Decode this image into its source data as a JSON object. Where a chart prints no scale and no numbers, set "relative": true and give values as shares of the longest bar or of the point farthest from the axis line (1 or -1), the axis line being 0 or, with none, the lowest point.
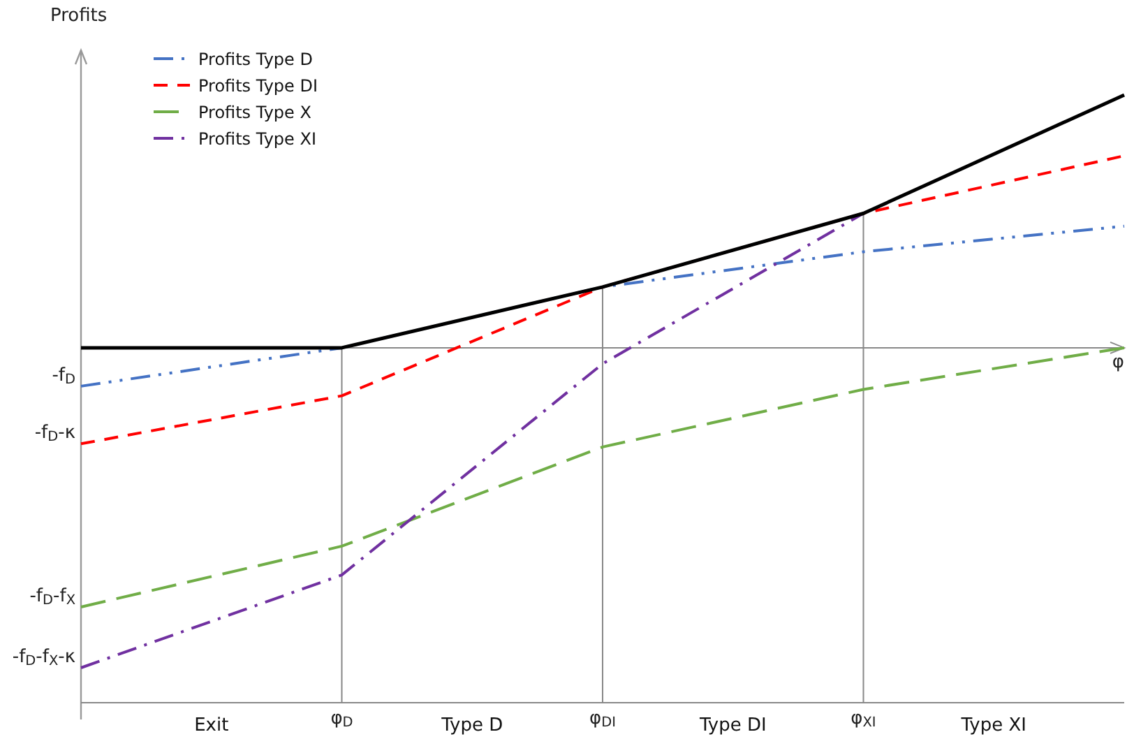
{
  "chart_data": {
    "type": "line",
    "relative": true,
    "ylabel": "Profits",
    "xlabel": "φ",
    "categories": [
      null,
      "φ$_{D}$",
      "φ$_{DI}$",
      "φ$_{XI}$",
      null
    ],
    "series": [
      {
        "name": "Profits Type D",
        "color": "#4472c4",
        "line_style": "dashed",
        "values": [
          -0.12,
          0,
          0.19,
          0.3,
          0.38
        ]
      },
      {
        "name": "Profits Type DI",
        "color": "#ff0000",
        "line_style": "dashed",
        "values": [
          -0.3,
          -0.15,
          0.19,
          0.42,
          0.6
        ]
      },
      {
        "name": "Profits Type X",
        "color": "#70ad47",
        "line_style": "dashed",
        "values": [
          -0.81,
          -0.62,
          -0.31,
          -0.13,
          0
        ]
      },
      {
        "name": "Profits Type XI",
        "color": "#7030a0",
        "line_style": "dashed",
        "values": [
          -1,
          -0.71,
          -0.05,
          0.42,
          null
        ]
      },
      {
        "color": "#000000",
        "line_style": "solid",
        "values": [
          0,
          0,
          0.19,
          0.42,
          0.79
        ]
      }
    ],
    "annotations": [
      "-f$_{D}$",
      "-f$_{D}$-κ",
      "-f$_{D}$-f$_{X}$",
      "-f$_{D}$-f$_{X}$-κ",
      "Exit",
      "Type D",
      "Type DI",
      "Type XI"
    ],
    "ref_lines": [
      {
        "axis": "x",
        "value": "φ$_{D}$"
      },
      {
        "axis": "x",
        "value": "φ$_{DI}$"
      },
      {
        "axis": "x",
        "value": "φ$_{XI}$"
      }
    ],
    "legend": "top left",
    "marker": "none"
  }
}
